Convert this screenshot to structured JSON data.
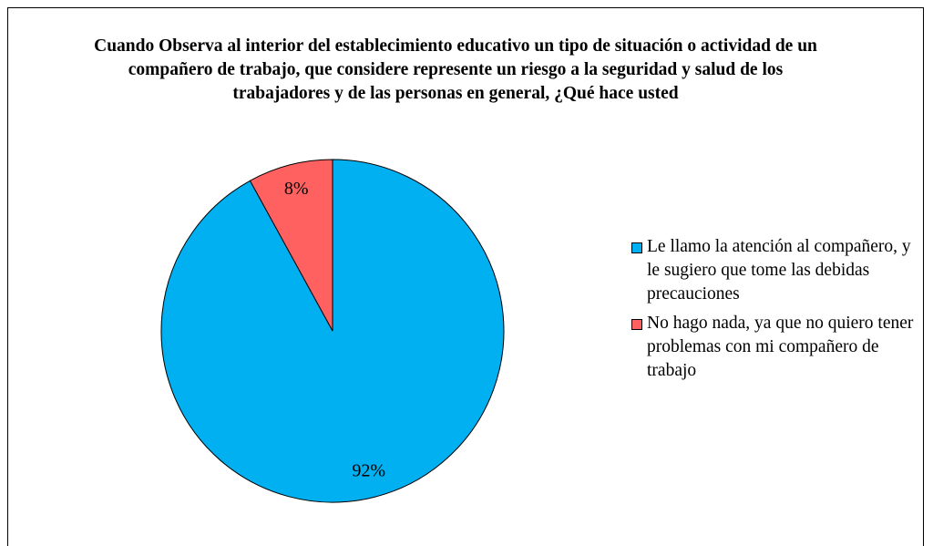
{
  "chart_data": {
    "type": "pie",
    "title": "Cuando Observa al interior del establecimiento educativo un tipo de situación o actividad de un compañero de trabajo,  que considere represente un riesgo a la seguridad y salud de los trabajadores y de las personas en general, ¿Qué hace usted",
    "categories": [
      "Le llamo la atención al compañero, y le sugiero que tome las debidas precauciones",
      "No hago nada, ya que no quiero tener problemas con mi compañero de trabajo"
    ],
    "values": [
      92,
      8
    ],
    "value_labels": [
      "92%",
      "8%"
    ],
    "colors": [
      "#00b0f0",
      "#ff6161"
    ],
    "legend": "right"
  }
}
